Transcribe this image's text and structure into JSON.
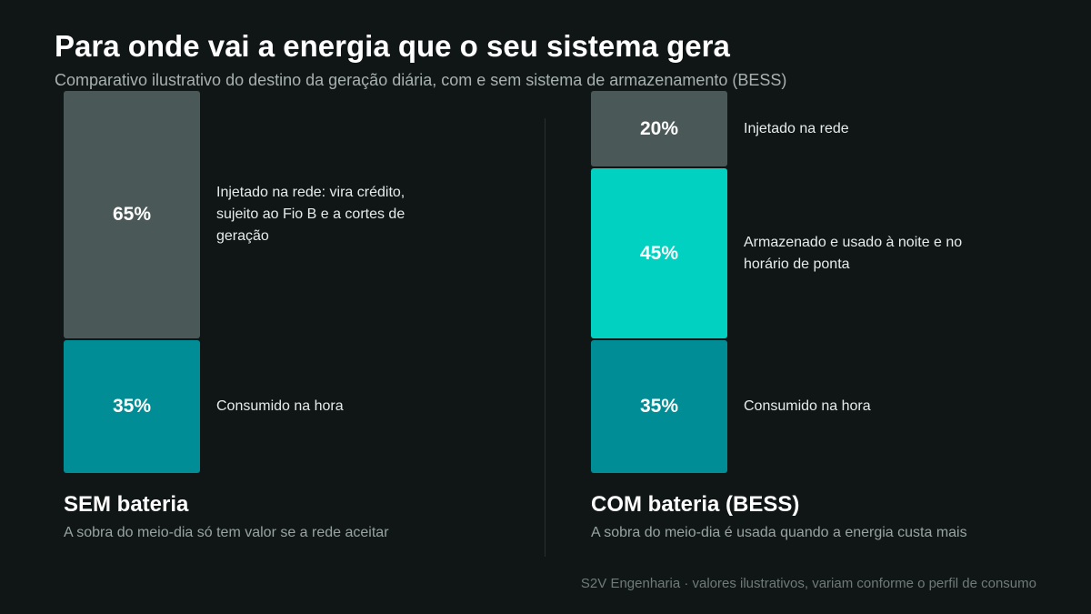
{
  "header": {
    "title": "Para onde vai a energia que o seu sistema gera",
    "subtitle": "Comparativo ilustrativo do destino da geração diária, com e sem sistema de armazenamento (BESS)"
  },
  "chart_data": {
    "type": "bar",
    "stacked": true,
    "unit": "%",
    "total": 100,
    "panels": [
      {
        "name": "SEM bateria",
        "caption": "A sobra do meio-dia só tem valor se a rede aceitar",
        "segments": [
          {
            "value": 35,
            "label": "35%",
            "description": "Consumido na hora",
            "color": "#008d95"
          },
          {
            "value": 65,
            "label": "65%",
            "description": "Injetado na rede: vira crédito, sujeito ao Fio B e a cortes de geração",
            "color": "#4a5957"
          }
        ]
      },
      {
        "name": "COM bateria (BESS)",
        "caption": "A sobra do meio-dia é usada quando a energia custa mais",
        "segments": [
          {
            "value": 35,
            "label": "35%",
            "description": "Consumido na hora",
            "color": "#008d95"
          },
          {
            "value": 45,
            "label": "45%",
            "description": "Armazenado e usado à noite e no horário de ponta",
            "color": "#00d1c1"
          },
          {
            "value": 20,
            "label": "20%",
            "description": "Injetado na rede",
            "color": "#4a5957"
          }
        ]
      }
    ]
  },
  "footer": {
    "note": "S2V Engenharia · valores ilustrativos, variam conforme o perfil de consumo"
  }
}
